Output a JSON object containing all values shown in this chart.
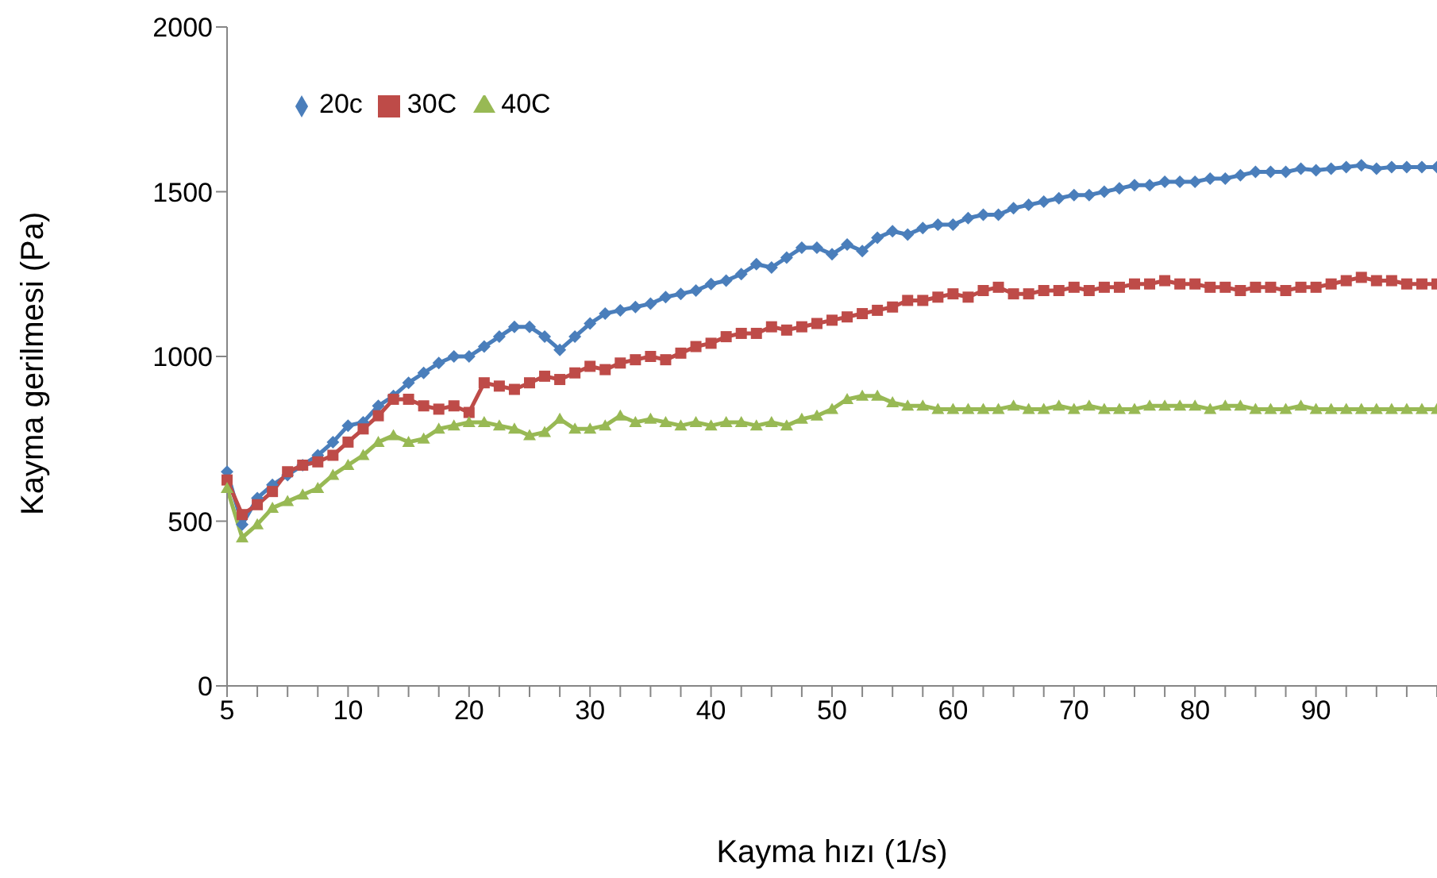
{
  "chart_data": {
    "type": "line",
    "xlabel": "Kayma hızı (1/s)",
    "ylabel": "Kayma gerilmesi (Pa)",
    "categories": [
      "5",
      null,
      null,
      null,
      null,
      null,
      null,
      null,
      "10",
      null,
      null,
      null,
      null,
      null,
      null,
      null,
      "20",
      null,
      null,
      null,
      null,
      null,
      null,
      null,
      "30",
      null,
      null,
      null,
      null,
      null,
      null,
      null,
      "40",
      null,
      null,
      null,
      null,
      null,
      null,
      null,
      "50",
      null,
      null,
      null,
      null,
      null,
      null,
      null,
      "60",
      null,
      null,
      null,
      null,
      null,
      null,
      null,
      "70",
      null,
      null,
      null,
      null,
      null,
      null,
      null,
      "80",
      null,
      null,
      null,
      null,
      null,
      null,
      null,
      "90",
      null,
      null,
      null,
      null,
      null,
      null,
      null,
      null
    ],
    "ylim": [
      0,
      2000
    ],
    "yticks": [
      0,
      500,
      1000,
      1500,
      2000
    ],
    "grid": false,
    "legend": "top left",
    "series": [
      {
        "name": "20c",
        "color": "#4a7ebb",
        "marker": "diamond",
        "values": [
          650,
          490,
          570,
          610,
          640,
          670,
          700,
          740,
          790,
          800,
          850,
          880,
          920,
          950,
          980,
          1000,
          1000,
          1030,
          1060,
          1090,
          1090,
          1060,
          1020,
          1060,
          1100,
          1130,
          1140,
          1150,
          1160,
          1180,
          1190,
          1200,
          1220,
          1230,
          1250,
          1280,
          1270,
          1300,
          1330,
          1330,
          1310,
          1340,
          1320,
          1360,
          1380,
          1370,
          1390,
          1400,
          1400,
          1420,
          1430,
          1430,
          1450,
          1460,
          1470,
          1480,
          1490,
          1490,
          1500,
          1510,
          1520,
          1520,
          1530,
          1530,
          1530,
          1540,
          1540,
          1550,
          1560,
          1560,
          1560,
          1570,
          1565,
          1570,
          1575,
          1580,
          1570,
          1575,
          1575,
          1575,
          1575
        ]
      },
      {
        "name": "30C",
        "color": "#be4b48",
        "marker": "square",
        "values": [
          625,
          520,
          550,
          590,
          650,
          670,
          680,
          700,
          740,
          780,
          820,
          870,
          870,
          850,
          840,
          850,
          830,
          920,
          910,
          900,
          920,
          940,
          930,
          950,
          970,
          960,
          980,
          990,
          1000,
          990,
          1010,
          1030,
          1040,
          1060,
          1070,
          1070,
          1090,
          1080,
          1090,
          1100,
          1110,
          1120,
          1130,
          1140,
          1150,
          1170,
          1170,
          1180,
          1190,
          1180,
          1200,
          1210,
          1190,
          1190,
          1200,
          1200,
          1210,
          1200,
          1210,
          1210,
          1220,
          1220,
          1230,
          1220,
          1220,
          1210,
          1210,
          1200,
          1210,
          1210,
          1200,
          1210,
          1210,
          1220,
          1230,
          1240,
          1230,
          1230,
          1220,
          1220,
          1220
        ]
      },
      {
        "name": "40C",
        "color": "#98b954",
        "marker": "triangle",
        "values": [
          600,
          450,
          490,
          540,
          560,
          580,
          600,
          640,
          670,
          700,
          740,
          760,
          740,
          750,
          780,
          790,
          800,
          800,
          790,
          780,
          760,
          770,
          810,
          780,
          780,
          790,
          820,
          800,
          810,
          800,
          790,
          800,
          790,
          800,
          800,
          790,
          800,
          790,
          810,
          820,
          840,
          870,
          880,
          880,
          860,
          850,
          850,
          840,
          840,
          840,
          840,
          840,
          850,
          840,
          840,
          850,
          840,
          850,
          840,
          840,
          840,
          850,
          850,
          850,
          850,
          840,
          850,
          850,
          840,
          840,
          840,
          850,
          840,
          840,
          840,
          840,
          840,
          840,
          840,
          840,
          840
        ]
      }
    ]
  }
}
